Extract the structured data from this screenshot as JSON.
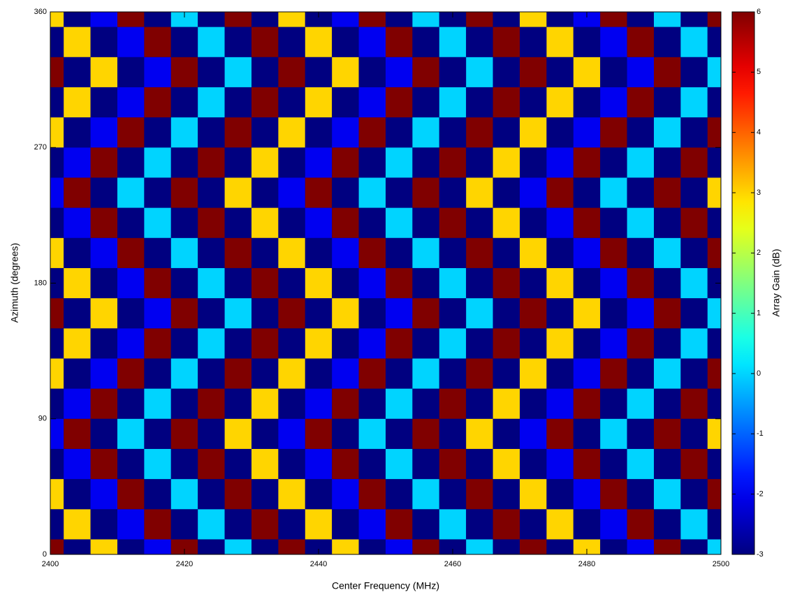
{
  "chart_data": {
    "type": "heatmap",
    "xlabel": "Center Frequency (MHz)",
    "ylabel": "Azimuth (degrees)",
    "colorbar_label": "Array Gain (dB)",
    "xlim": [
      2400,
      2500
    ],
    "xticks": [
      2400,
      2420,
      2440,
      2460,
      2480,
      2500
    ],
    "ylim": [
      0,
      360
    ],
    "yticks": [
      0,
      90,
      180,
      270,
      360
    ],
    "zlim": [
      -3,
      6
    ],
    "zticks": [
      -3,
      -2,
      -1,
      0,
      1,
      2,
      3,
      4,
      5,
      6
    ],
    "colormap": "jet",
    "x": [
      2400,
      2404,
      2408,
      2412,
      2416,
      2420,
      2424,
      2428,
      2432,
      2436,
      2440,
      2444,
      2448,
      2452,
      2456,
      2460,
      2464,
      2468,
      2472,
      2476,
      2480,
      2484,
      2488,
      2492,
      2496,
      2500
    ],
    "y": [
      0,
      20,
      40,
      60,
      80,
      100,
      120,
      140,
      160,
      180,
      200,
      220,
      240,
      260,
      280,
      300,
      320,
      340,
      360
    ],
    "z": [
      [
        6,
        -3,
        3,
        -3,
        -2,
        6,
        -3,
        0,
        -3,
        6,
        -3,
        3,
        -3,
        -2,
        6,
        -3,
        0,
        -3,
        6,
        -3,
        3,
        -3,
        -2,
        6,
        -3,
        0
      ],
      [
        -3,
        3,
        -3,
        -2,
        6,
        -3,
        0,
        -3,
        6,
        -3,
        3,
        -3,
        -2,
        6,
        -3,
        0,
        -3,
        6,
        -3,
        3,
        -3,
        -2,
        6,
        -3,
        0,
        -3
      ],
      [
        3,
        -3,
        -2,
        6,
        -3,
        0,
        -3,
        6,
        -3,
        3,
        -3,
        -2,
        6,
        -3,
        0,
        -3,
        6,
        -3,
        3,
        -3,
        -2,
        6,
        -3,
        0,
        -3,
        6
      ],
      [
        -3,
        -2,
        6,
        -3,
        0,
        -3,
        6,
        -3,
        3,
        -3,
        -2,
        6,
        -3,
        0,
        -3,
        6,
        -3,
        3,
        -3,
        -2,
        6,
        -3,
        0,
        -3,
        6,
        -3
      ],
      [
        -2,
        6,
        -3,
        0,
        -3,
        6,
        -3,
        3,
        -3,
        -2,
        6,
        -3,
        0,
        -3,
        6,
        -3,
        3,
        -3,
        -2,
        6,
        -3,
        0,
        -3,
        6,
        -3,
        3
      ],
      [
        -3,
        -2,
        6,
        -3,
        0,
        -3,
        6,
        -3,
        3,
        -3,
        -2,
        6,
        -3,
        0,
        -3,
        6,
        -3,
        3,
        -3,
        -2,
        6,
        -3,
        0,
        -3,
        6,
        -3
      ],
      [
        3,
        -3,
        -2,
        6,
        -3,
        0,
        -3,
        6,
        -3,
        3,
        -3,
        -2,
        6,
        -3,
        0,
        -3,
        6,
        -3,
        3,
        -3,
        -2,
        6,
        -3,
        0,
        -3,
        6
      ],
      [
        -3,
        3,
        -3,
        -2,
        6,
        -3,
        0,
        -3,
        6,
        -3,
        3,
        -3,
        -2,
        6,
        -3,
        0,
        -3,
        6,
        -3,
        3,
        -3,
        -2,
        6,
        -3,
        0,
        -3
      ],
      [
        6,
        -3,
        3,
        -3,
        -2,
        6,
        -3,
        0,
        -3,
        6,
        -3,
        3,
        -3,
        -2,
        6,
        -3,
        0,
        -3,
        6,
        -3,
        3,
        -3,
        -2,
        6,
        -3,
        0
      ],
      [
        -3,
        3,
        -3,
        -2,
        6,
        -3,
        0,
        -3,
        6,
        -3,
        3,
        -3,
        -2,
        6,
        -3,
        0,
        -3,
        6,
        -3,
        3,
        -3,
        -2,
        6,
        -3,
        0,
        -3
      ],
      [
        3,
        -3,
        -2,
        6,
        -3,
        0,
        -3,
        6,
        -3,
        3,
        -3,
        -2,
        6,
        -3,
        0,
        -3,
        6,
        -3,
        3,
        -3,
        -2,
        6,
        -3,
        0,
        -3,
        6
      ],
      [
        -3,
        -2,
        6,
        -3,
        0,
        -3,
        6,
        -3,
        3,
        -3,
        -2,
        6,
        -3,
        0,
        -3,
        6,
        -3,
        3,
        -3,
        -2,
        6,
        -3,
        0,
        -3,
        6,
        -3
      ],
      [
        -2,
        6,
        -3,
        0,
        -3,
        6,
        -3,
        3,
        -3,
        -2,
        6,
        -3,
        0,
        -3,
        6,
        -3,
        3,
        -3,
        -2,
        6,
        -3,
        0,
        -3,
        6,
        -3,
        3
      ],
      [
        -3,
        -2,
        6,
        -3,
        0,
        -3,
        6,
        -3,
        3,
        -3,
        -2,
        6,
        -3,
        0,
        -3,
        6,
        -3,
        3,
        -3,
        -2,
        6,
        -3,
        0,
        -3,
        6,
        -3
      ],
      [
        3,
        -3,
        -2,
        6,
        -3,
        0,
        -3,
        6,
        -3,
        3,
        -3,
        -2,
        6,
        -3,
        0,
        -3,
        6,
        -3,
        3,
        -3,
        -2,
        6,
        -3,
        0,
        -3,
        6
      ],
      [
        -3,
        3,
        -3,
        -2,
        6,
        -3,
        0,
        -3,
        6,
        -3,
        3,
        -3,
        -2,
        6,
        -3,
        0,
        -3,
        6,
        -3,
        3,
        -3,
        -2,
        6,
        -3,
        0,
        -3
      ],
      [
        6,
        -3,
        3,
        -3,
        -2,
        6,
        -3,
        0,
        -3,
        6,
        -3,
        3,
        -3,
        -2,
        6,
        -3,
        0,
        -3,
        6,
        -3,
        3,
        -3,
        -2,
        6,
        -3,
        0
      ],
      [
        -3,
        3,
        -3,
        -2,
        6,
        -3,
        0,
        -3,
        6,
        -3,
        3,
        -3,
        -2,
        6,
        -3,
        0,
        -3,
        6,
        -3,
        3,
        -3,
        -2,
        6,
        -3,
        0,
        -3
      ],
      [
        3,
        -3,
        -2,
        6,
        -3,
        0,
        -3,
        6,
        -3,
        3,
        -3,
        -2,
        6,
        -3,
        0,
        -3,
        6,
        -3,
        3,
        -3,
        -2,
        6,
        -3,
        0,
        -3,
        6
      ]
    ]
  }
}
